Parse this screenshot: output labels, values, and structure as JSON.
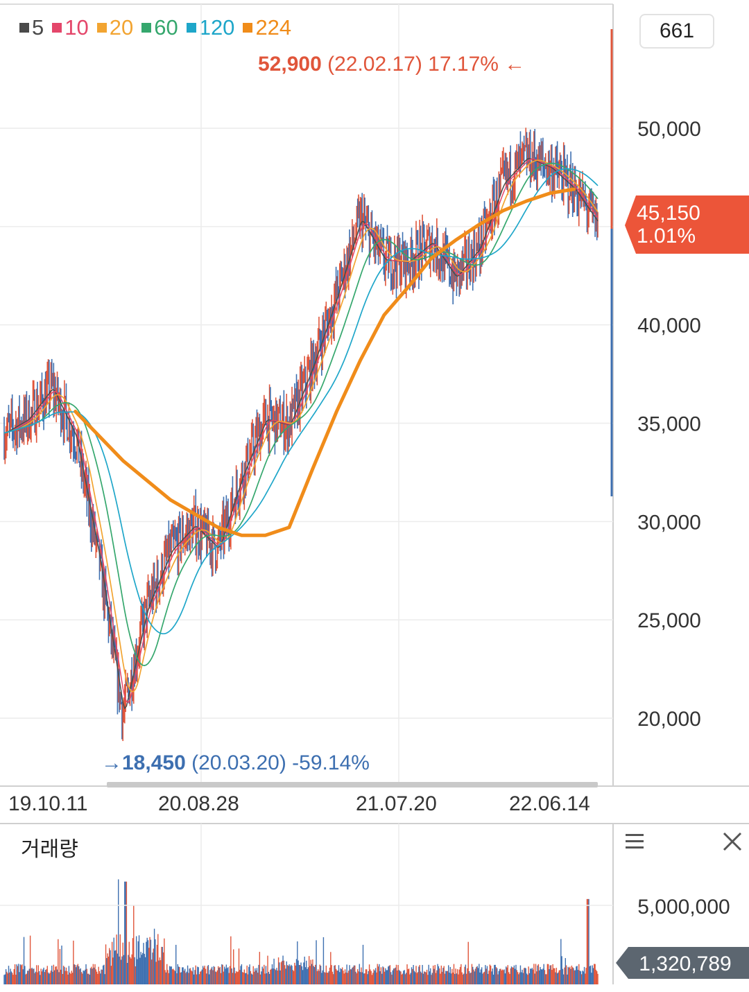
{
  "legend": [
    {
      "label": "5",
      "color": "#4a4a4a"
    },
    {
      "label": "10",
      "color": "#e4466a"
    },
    {
      "label": "20",
      "color": "#f2a431"
    },
    {
      "label": "60",
      "color": "#35a76d"
    },
    {
      "label": "120",
      "color": "#1ea6c9"
    },
    {
      "label": "224",
      "color": "#f08c1a"
    }
  ],
  "count_box": "661",
  "high_annotation": {
    "price": "52,900",
    "date": "(22.02.17)",
    "pct": "17.17%",
    "arrow": "←",
    "color": "#e0553a"
  },
  "low_annotation": {
    "price": "18,450",
    "date": "(20.03.20)",
    "pct": "-59.14%",
    "arrow": "→",
    "color": "#3d6fb0"
  },
  "current": {
    "price": "45,150",
    "pct": "1.01%",
    "color": "#ec5539"
  },
  "volume_title": "거래량",
  "volume_current": "1,320,789",
  "volume_tick": "5,000,000",
  "chart_data": {
    "type": "line",
    "price_axis": {
      "ticks": [
        "50,000",
        "40,000",
        "35,000",
        "30,000",
        "25,000",
        "20,000"
      ],
      "tick_values": [
        50000,
        40000,
        35000,
        30000,
        25000,
        20000
      ],
      "ylim": [
        16800,
        54800
      ]
    },
    "x_ticks": [
      "19.10.11",
      "20.08.28",
      "21.07.20",
      "22.06.14"
    ],
    "series": [
      {
        "name": "5",
        "x": [
          0,
          0.04,
          0.08,
          0.12,
          0.16,
          0.2,
          0.24,
          0.28,
          0.32,
          0.36,
          0.4,
          0.44,
          0.48,
          0.52,
          0.56,
          0.6,
          0.64,
          0.68,
          0.72,
          0.76,
          0.8,
          0.84,
          0.88,
          0.92,
          0.96,
          1.0
        ],
        "values": [
          34500,
          35200,
          36800,
          34300,
          28000,
          20200,
          25600,
          28500,
          29800,
          28600,
          32300,
          35200,
          34900,
          38000,
          41500,
          45400,
          43300,
          43200,
          44200,
          42400,
          43900,
          47200,
          48500,
          48000,
          46900,
          45150
        ]
      },
      {
        "name": "224",
        "x": [
          0.12,
          0.2,
          0.28,
          0.36,
          0.4,
          0.44,
          0.48,
          0.52,
          0.56,
          0.6,
          0.64,
          0.68,
          0.72,
          0.76,
          0.8,
          0.84,
          0.88,
          0.92,
          0.96,
          1.0
        ],
        "values": [
          35600,
          33100,
          31100,
          29700,
          29300,
          29300,
          29700,
          32700,
          35600,
          38200,
          40500,
          41900,
          43400,
          44300,
          45100,
          45800,
          46300,
          46700,
          46900,
          45150
        ]
      }
    ],
    "extremes": {
      "high": {
        "value": 52900,
        "date": "22.02.17",
        "change_pct": 17.17
      },
      "low": {
        "value": 18450,
        "date": "20.03.20",
        "change_pct": -59.14
      }
    },
    "last": {
      "value": 45150,
      "change_pct": 1.01
    },
    "volume": {
      "ticks": [
        "5,000,000"
      ],
      "tick_values": [
        5000000
      ],
      "last": 1320789
    }
  }
}
